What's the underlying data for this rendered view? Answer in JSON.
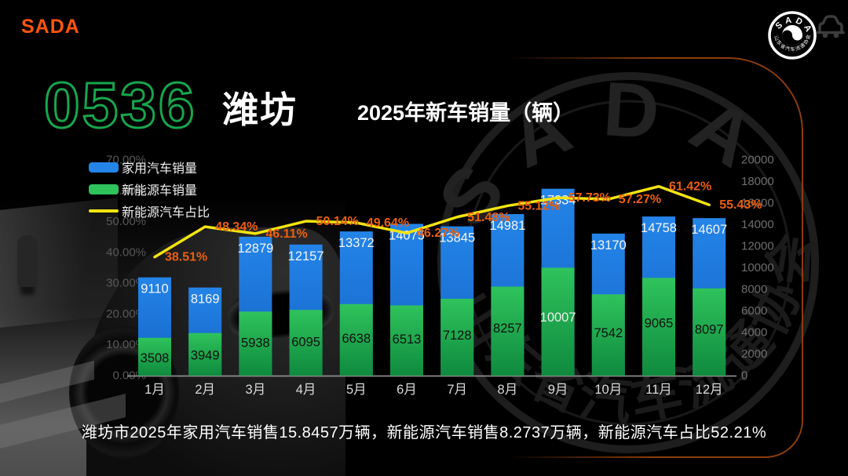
{
  "brand": {
    "logo_text": "SADA"
  },
  "badge": {
    "arc_top": "SADA",
    "arc_bottom": "山东省汽车流通协会"
  },
  "header": {
    "area_code": "0536",
    "city": "潍坊",
    "chart_title": "2025年新车销量（辆）"
  },
  "watermark": {
    "arc_top": "SADA",
    "arc_bottom": "山东省汽车流通协会"
  },
  "summary": "潍坊市2025年家用汽车销售15.8457万辆，新能源汽车销售8.2737万辆，新能源汽车占比52.21%",
  "colors": {
    "accent_orange": "#ff560d",
    "pct_label_orange": "#ed5f10",
    "bar_blue": [
      "#2484e8",
      "#1463c4"
    ],
    "bar_green": [
      "#2fc35c",
      "#0f8a3e"
    ],
    "line_yellow": "#f2e410",
    "deco_border": "#8f3d0c"
  },
  "chart_data": {
    "type": "bar",
    "subtype": "overlapped bars + percentage line (dual axis)",
    "title": "2025年新车销量（辆）",
    "categories": [
      "1月",
      "2月",
      "3月",
      "4月",
      "5月",
      "6月",
      "7月",
      "8月",
      "9月",
      "10月",
      "11月",
      "12月"
    ],
    "series": [
      {
        "name": "家用汽车销量",
        "type": "bar",
        "axis": "right",
        "color": "#1d7ad9",
        "values": [
          9110,
          8169,
          12879,
          12157,
          13372,
          14075,
          13845,
          14981,
          17334,
          13170,
          14758,
          14607
        ]
      },
      {
        "name": "新能源车销量",
        "type": "bar",
        "axis": "right",
        "color": "#25b554",
        "values": [
          3508,
          3949,
          5938,
          6095,
          6638,
          6513,
          7128,
          8257,
          10007,
          7542,
          9065,
          8097
        ]
      },
      {
        "name": "新能源汽车占比",
        "type": "line",
        "axis": "left",
        "color": "#f6e51b",
        "unit": "%",
        "values": [
          38.51,
          48.34,
          46.11,
          50.14,
          49.64,
          46.27,
          51.48,
          55.12,
          57.73,
          57.27,
          61.42,
          55.43
        ]
      }
    ],
    "left_axis": {
      "min": 0,
      "max": 70,
      "unit": "%",
      "ticks": [
        "0.00%",
        "10.00%",
        "20.00%",
        "30.00%",
        "40.00%",
        "50.00%",
        "60.00%",
        "70.00%"
      ]
    },
    "right_axis": {
      "min": 0,
      "max": 20000,
      "ticks": [
        "0",
        "2000",
        "4000",
        "6000",
        "8000",
        "10000",
        "12000",
        "14000",
        "16000",
        "18000",
        "20000"
      ]
    },
    "grid": false,
    "legend_position": "top-left"
  }
}
